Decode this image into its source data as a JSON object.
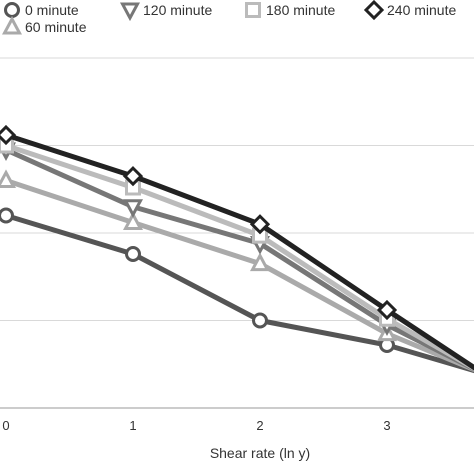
{
  "chart_data": {
    "type": "line",
    "title": "",
    "xlabel": "Shear rate (ln y)",
    "ylabel": "",
    "x": [
      0,
      1,
      2,
      3,
      3.75
    ],
    "xticks": [
      "0",
      "1",
      "2",
      "3"
    ],
    "xlim": [
      0,
      3.65
    ],
    "ylim": [
      0,
      4.6
    ],
    "grid": true,
    "legend_position": "top",
    "series": [
      {
        "name": "0 minute",
        "marker": "circle",
        "color": "#555555",
        "values": [
          2.2,
          1.76,
          1.0,
          0.72,
          0.4
        ]
      },
      {
        "name": "60 minute",
        "marker": "triangle-up",
        "color": "#aaaaaa",
        "values": [
          2.6,
          2.12,
          1.65,
          0.85,
          0.4
        ]
      },
      {
        "name": "120 minute",
        "marker": "triangle-down",
        "color": "#777777",
        "values": [
          2.95,
          2.3,
          1.88,
          0.95,
          0.4
        ]
      },
      {
        "name": "180 minute",
        "marker": "square",
        "color": "#bbbbbb",
        "values": [
          3.0,
          2.52,
          1.97,
          1.02,
          0.4
        ]
      },
      {
        "name": "240 minute",
        "marker": "diamond",
        "color": "#222222",
        "values": [
          3.12,
          2.65,
          2.1,
          1.12,
          0.4
        ]
      }
    ]
  }
}
